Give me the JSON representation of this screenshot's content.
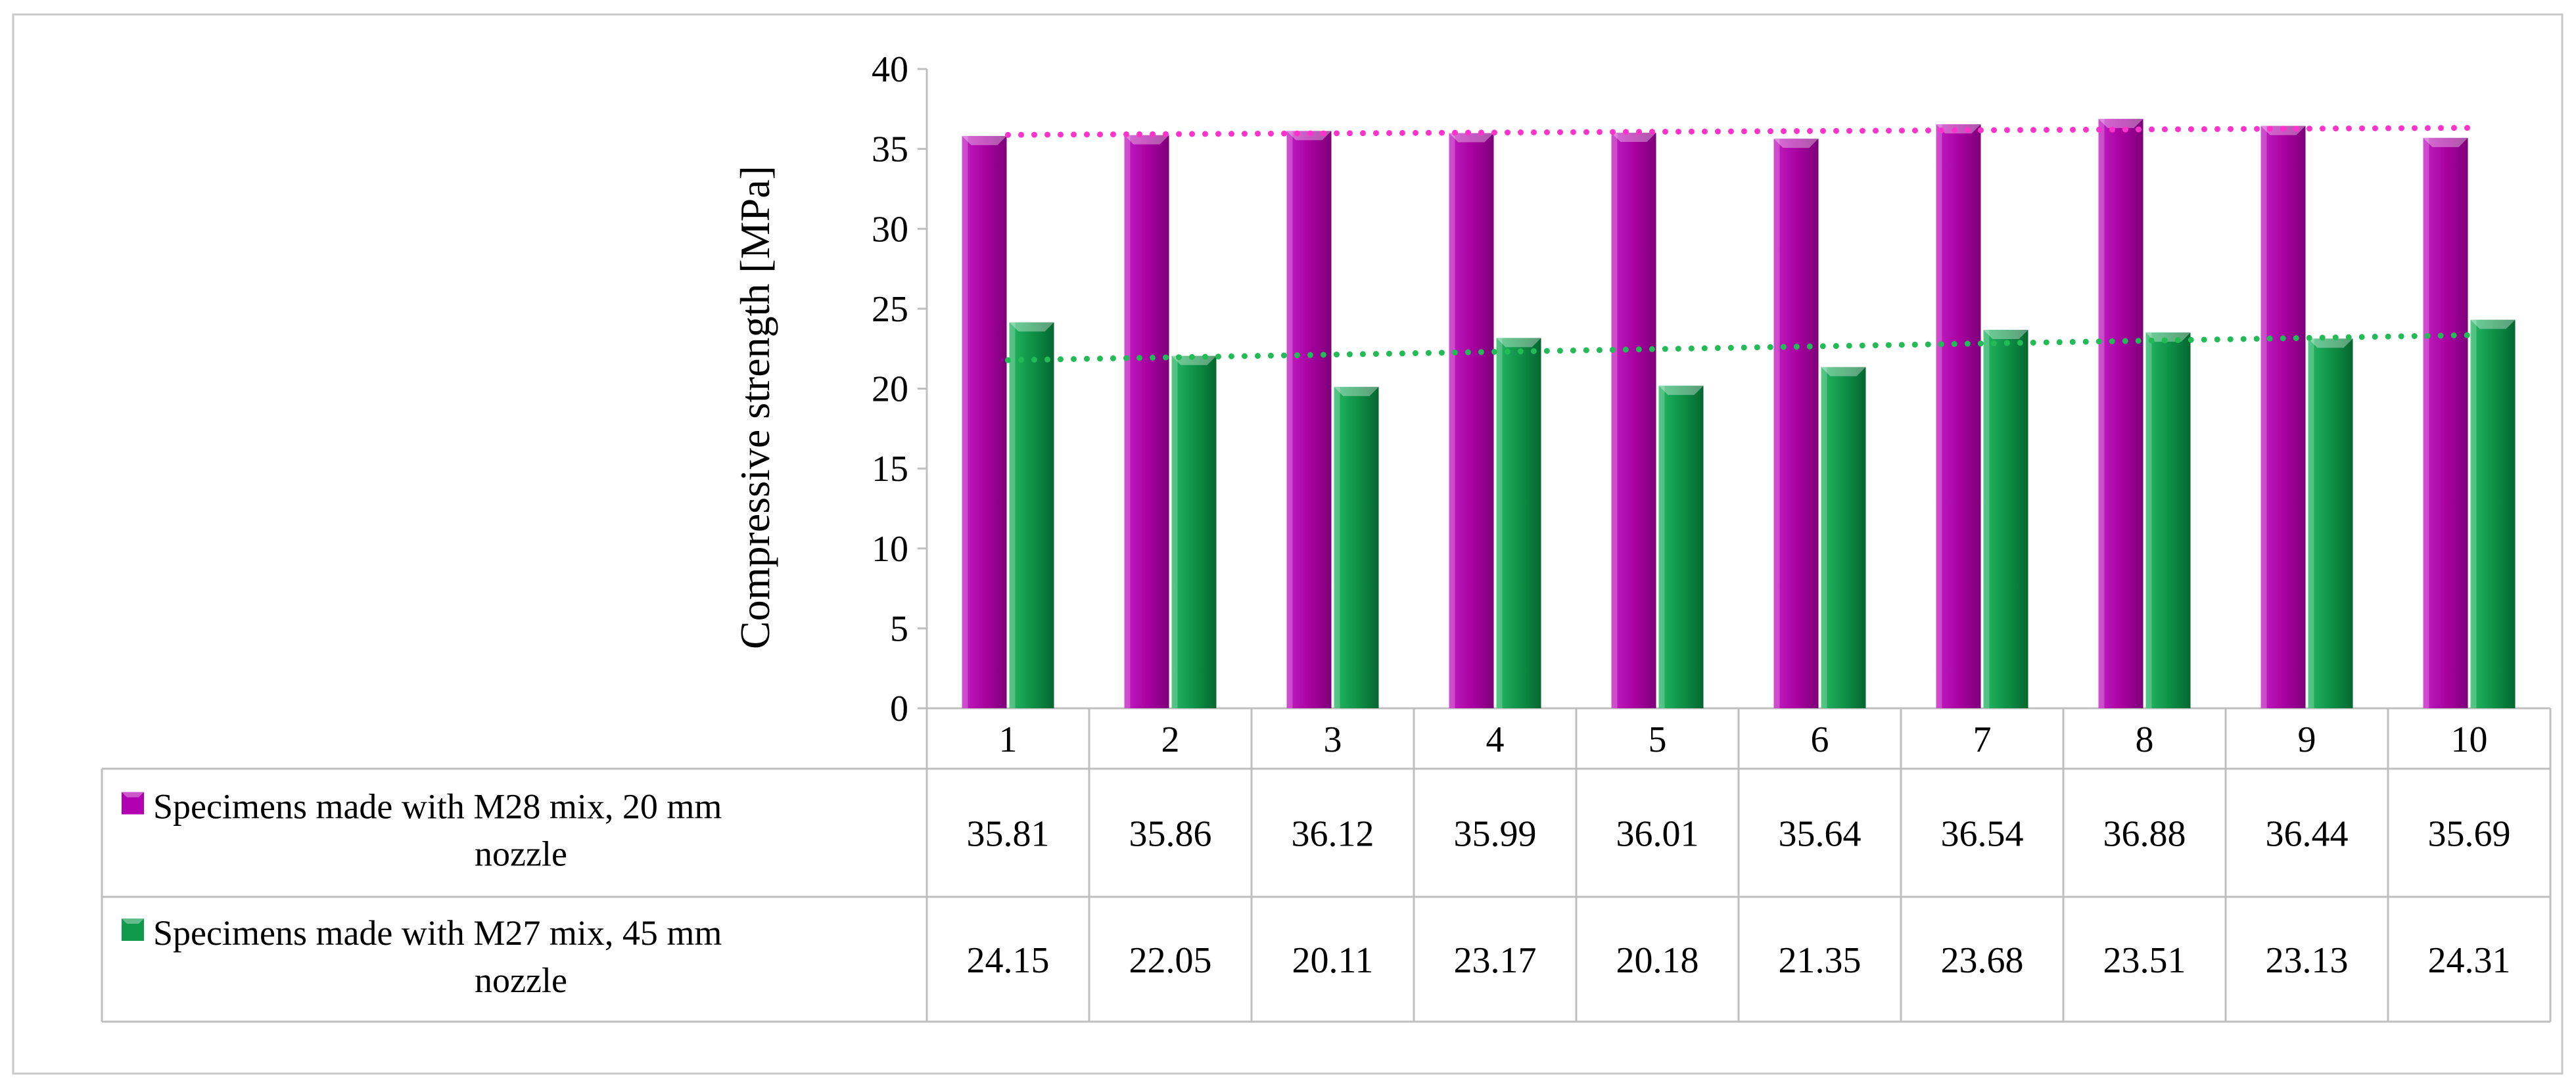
{
  "chart_data": {
    "type": "bar",
    "ylabel": "Compressive strength [MPa]",
    "ylim": [
      0,
      40
    ],
    "yticks": [
      0,
      5,
      10,
      15,
      20,
      25,
      30,
      35,
      40
    ],
    "grid": false,
    "legend": "data-table-rows",
    "trendlines": "linear, dotted, one per series",
    "categories": [
      "1",
      "2",
      "3",
      "4",
      "5",
      "6",
      "7",
      "8",
      "9",
      "10"
    ],
    "series": [
      {
        "name": "Specimens made with M28 mix, 20 mm nozzle",
        "name_lines": [
          "Specimens made with M28 mix, 20 mm",
          "nozzle"
        ],
        "values": [
          35.81,
          35.86,
          36.12,
          35.99,
          36.01,
          35.64,
          36.54,
          36.88,
          36.44,
          35.69
        ],
        "labels": [
          "35.81",
          "35.86",
          "36.12",
          "35.99",
          "36.01",
          "35.64",
          "36.54",
          "36.88",
          "36.44",
          "35.69"
        ],
        "color": "#b000b0",
        "trend_color": "#ff33cc"
      },
      {
        "name": "Specimens made with M27 mix, 45 mm nozzle",
        "name_lines": [
          "Specimens made with M27 mix, 45 mm",
          "nozzle"
        ],
        "values": [
          24.15,
          22.05,
          20.11,
          23.17,
          20.18,
          21.35,
          23.68,
          23.51,
          23.13,
          24.31
        ],
        "labels": [
          "24.15",
          "22.05",
          "20.11",
          "23.17",
          "20.18",
          "21.35",
          "23.68",
          "23.51",
          "23.13",
          "24.31"
        ],
        "color": "#0f9a4c",
        "trend_color": "#22bb55"
      }
    ]
  }
}
